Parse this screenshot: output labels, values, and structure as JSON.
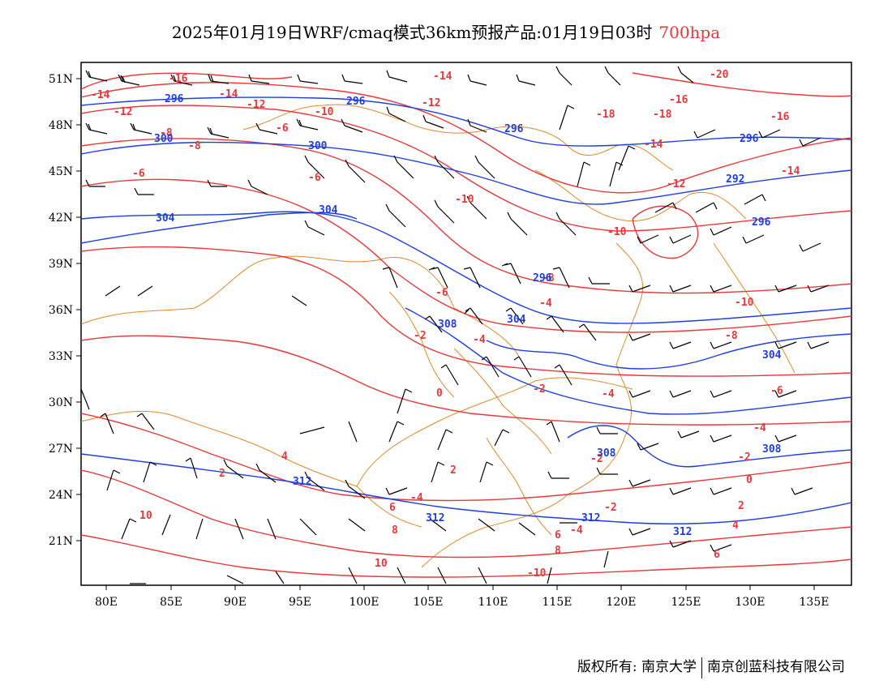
{
  "title": {
    "main": "2025年01月19日WRF/cmaq模式36km预报产品:01月19日03时",
    "level": "700hpa"
  },
  "axes": {
    "lon_labels": [
      "80E",
      "85E",
      "90E",
      "95E",
      "100E",
      "105E",
      "110E",
      "115E",
      "120E",
      "125E",
      "130E",
      "135E"
    ],
    "lat_labels": [
      "51N",
      "48N",
      "45N",
      "42N",
      "39N",
      "36N",
      "33N",
      "30N",
      "27N",
      "24N",
      "21N"
    ]
  },
  "temperature_labels": [
    "-14",
    "-16",
    "-14",
    "-12",
    "-12",
    "-14",
    "-12",
    "-10",
    "-20",
    "-18",
    "-16",
    "-18",
    "-16",
    "-14",
    "-8",
    "-6",
    "-8",
    "-6",
    "-14",
    "-10",
    "-12",
    "-10",
    "-6",
    "-8",
    "-10",
    "-8",
    "-2",
    "-4",
    "-4",
    "-2",
    "-6",
    "-4",
    "-2",
    "0",
    "0",
    "-4",
    "2",
    "-4",
    "-2",
    "2",
    "-2",
    "4",
    "6",
    "8",
    "10",
    "10",
    "8",
    "6",
    "2",
    "4",
    "6",
    "-10",
    "-6",
    "-4"
  ],
  "height_labels": [
    "296",
    "296",
    "296",
    "296",
    "300",
    "300",
    "296",
    "292",
    "304",
    "304",
    "296",
    "308",
    "304",
    "304",
    "308",
    "312",
    "312",
    "312",
    "312",
    "308"
  ],
  "colors": {
    "temperature": "#e8393a",
    "height": "#1e3ee0",
    "borders": "#e0892a",
    "wind": "#000000"
  },
  "footer": {
    "copyright": "版权所有: 南京大学",
    "company": "南京创蓝科技有限公司"
  }
}
